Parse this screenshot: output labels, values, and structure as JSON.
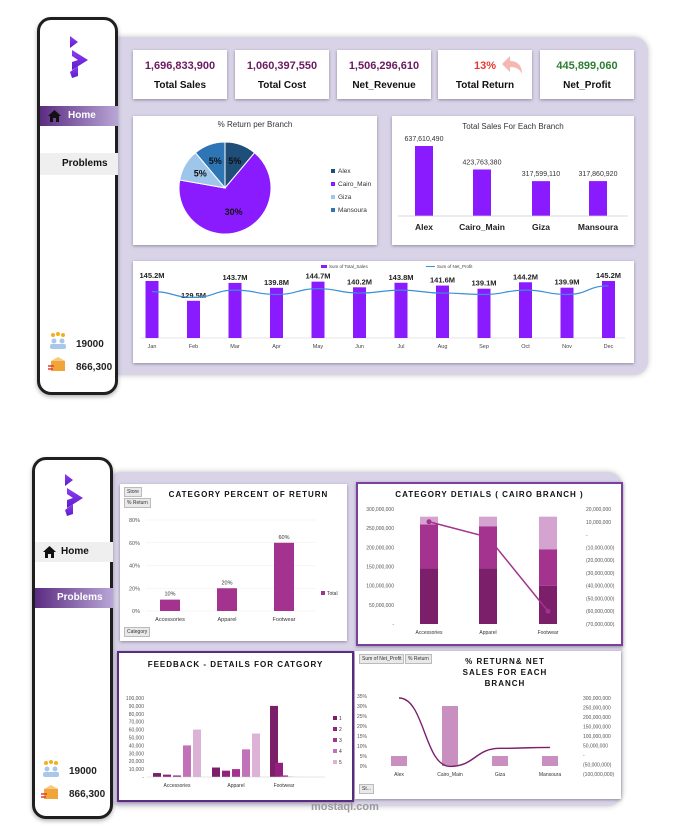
{
  "colors": {
    "purple": "#8b1bff",
    "accent": "#5b2c82",
    "profit": "#2e7d32",
    "ret": "#e53935",
    "cat1": "#7b1f6a",
    "cat2": "#a3338f",
    "cat3": "#d4a3cf"
  },
  "dash1": {
    "nav": {
      "home": "Home",
      "problems": "Problems"
    },
    "stats": {
      "customers": "19000",
      "orders": "866,300"
    },
    "kpis": [
      {
        "value": "1,696,833,900",
        "label": "Total Sales"
      },
      {
        "value": "1,060,397,550",
        "label": "Total Cost"
      },
      {
        "value": "1,506,296,610",
        "label": "Net_Revenue"
      },
      {
        "value": "13%",
        "label": "Total Return"
      },
      {
        "value": "445,899,060",
        "label": "Net_Profit"
      }
    ],
    "pie": {
      "title": "% Return per Branch",
      "labels": [
        "5%",
        "5%",
        "5%",
        "30%"
      ]
    }
  },
  "dash2": {
    "nav": {
      "home": "Home",
      "problems": "Problems"
    },
    "stats": {
      "customers": "19000",
      "orders": "866,300"
    },
    "watermark": "mostaql.com"
  },
  "chart_data": [
    {
      "type": "pie",
      "title": "% Return per Branch",
      "categories": [
        "Alex",
        "Cairo_Main",
        "Giza",
        "Mansoura"
      ],
      "values": [
        5,
        30,
        5,
        5
      ],
      "labels": [
        "5%",
        "30%",
        "5%",
        "5%"
      ]
    },
    {
      "type": "bar",
      "title": "Total Sales For Each Branch",
      "categories": [
        "Alex",
        "Cairo_Main",
        "Giza",
        "Mansoura"
      ],
      "values": [
        637610490,
        423763380,
        317599110,
        317860920
      ],
      "labels": [
        "637,610,490",
        "423,763,380",
        "317,599,110",
        "317,860,920"
      ]
    },
    {
      "type": "bar",
      "title": "",
      "legend": [
        "Sum of Total_Sales",
        "Sum of Net_Profit"
      ],
      "categories": [
        "Jan",
        "Feb",
        "Mar",
        "Apr",
        "May",
        "Jun",
        "Jul",
        "Aug",
        "Sep",
        "Oct",
        "Nov",
        "Dec"
      ],
      "values": [
        145.2,
        129.5,
        143.7,
        139.8,
        144.7,
        140.2,
        143.8,
        141.6,
        139.1,
        144.2,
        139.9,
        145.2
      ],
      "labels": [
        "145.2M",
        "129.5M",
        "143.7M",
        "139.8M",
        "144.7M",
        "140.2M",
        "143.8M",
        "141.6M",
        "139.1M",
        "144.2M",
        "139.9M",
        "145.2M"
      ],
      "line": [
        36,
        34,
        36.5,
        35,
        37,
        35.5,
        36.5,
        35.5,
        35,
        36.5,
        35,
        38
      ]
    },
    {
      "type": "bar",
      "title": "CATEGORY PERCENT OF RETURN",
      "categories": [
        "Accessories",
        "Apparel",
        "Footwear"
      ],
      "values": [
        10,
        20,
        60
      ],
      "labels": [
        "10%",
        "20%",
        "60%"
      ],
      "yticks": [
        "0%",
        "20%",
        "40%",
        "60%",
        "80%"
      ],
      "filters": [
        "Store",
        "% Return",
        "Category"
      ],
      "legend": "Total",
      "ylim": [
        0,
        80
      ]
    },
    {
      "type": "bar",
      "title": "CATEGORY DETIALS ( CAIRO BRANCH )",
      "categories": [
        "Accessories",
        "Apparel",
        "Footwear"
      ],
      "stacks": [
        [
          145,
          115,
          20
        ],
        [
          145,
          110,
          25
        ],
        [
          100,
          95,
          85
        ]
      ],
      "line": [
        10000000,
        -2000000,
        -60000000
      ],
      "yticks": [
        "300,000,000",
        "250,000,000",
        "200,000,000",
        "150,000,000",
        "100,000,000",
        "50,000,000",
        "-"
      ],
      "y2ticks": [
        "20,000,000",
        "10,000,000",
        "-",
        "(10,000,000)",
        "(20,000,000)",
        "(30,000,000)",
        "(40,000,000)",
        "(50,000,000)",
        "(60,000,000)",
        "(70,000,000)"
      ]
    },
    {
      "type": "bar",
      "title": "FEEDBACK - DETAILS FOR CATGORY",
      "categories": [
        "Accessories",
        "Apparel",
        "Footwear"
      ],
      "series": [
        {
          "name": "1",
          "values": [
            5000,
            12000,
            90000
          ]
        },
        {
          "name": "2",
          "values": [
            3000,
            8000,
            18000
          ]
        },
        {
          "name": "3",
          "values": [
            2000,
            10000,
            2000
          ]
        },
        {
          "name": "4",
          "values": [
            40000,
            35000,
            500
          ]
        },
        {
          "name": "5",
          "values": [
            60000,
            55000,
            200
          ]
        }
      ],
      "yticks": [
        "100,000",
        "90,000",
        "80,000",
        "70,000",
        "60,000",
        "50,000",
        "40,000",
        "30,000",
        "20,000",
        "10,000",
        "-"
      ],
      "legend": [
        "1",
        "2",
        "3",
        "4",
        "5"
      ]
    },
    {
      "type": "bar",
      "title": "% RETURN& NET SALES FOR EACH BRANCH",
      "categories": [
        "Alex",
        "Cairo_Main",
        "Giza",
        "Mansoura"
      ],
      "values": [
        5,
        30,
        5,
        5
      ],
      "line": [
        300000000,
        -60000000,
        35000000,
        40000000
      ],
      "filters": [
        "Sum of Net_Profit",
        "% Return",
        "St..."
      ],
      "yticks": [
        "35%",
        "30%",
        "25%",
        "20%",
        "15%",
        "10%",
        "5%",
        "0%"
      ],
      "y2ticks": [
        "300,000,000",
        "250,000,000",
        "200,000,000",
        "150,000,000",
        "100,000,000",
        "50,000,000",
        "-",
        "(50,000,000)",
        "(100,000,000)"
      ]
    }
  ]
}
